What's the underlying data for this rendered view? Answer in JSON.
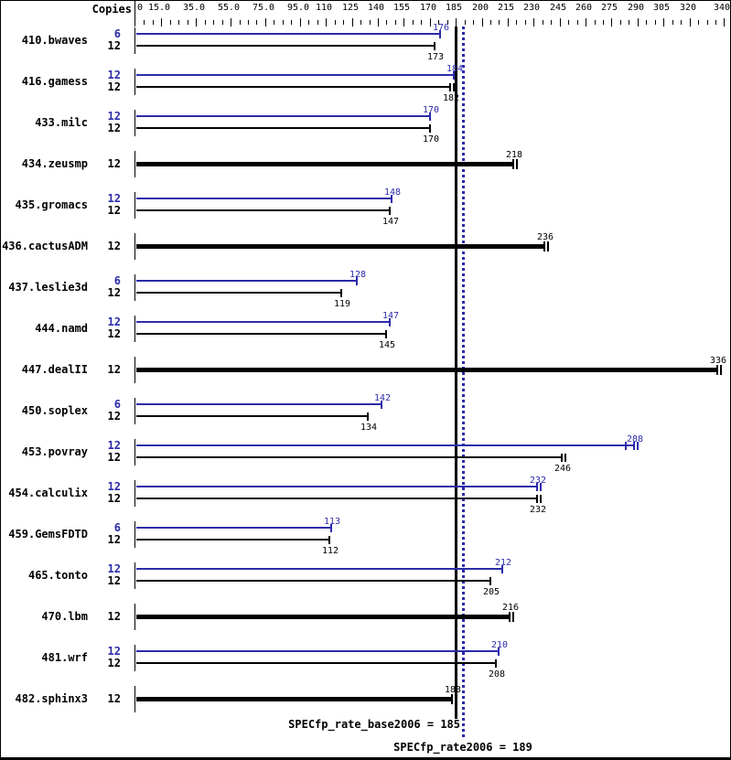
{
  "chart_data": {
    "type": "bar",
    "orientation": "horizontal",
    "copies_header": "Copies",
    "colors": {
      "peak": "#2b2baa",
      "base": "#000000"
    },
    "axis": {
      "min": 0,
      "max": 340,
      "minor_tick_step": 5,
      "ticks": [
        {
          "label": "0",
          "value": 0
        },
        {
          "label": "15.0",
          "value": 15
        },
        {
          "label": "35.0",
          "value": 35
        },
        {
          "label": "55.0",
          "value": 55
        },
        {
          "label": "75.0",
          "value": 75
        },
        {
          "label": "95.0",
          "value": 95
        },
        {
          "label": "110",
          "value": 110
        },
        {
          "label": "125",
          "value": 125
        },
        {
          "label": "140",
          "value": 140
        },
        {
          "label": "155",
          "value": 155
        },
        {
          "label": "170",
          "value": 170
        },
        {
          "label": "185",
          "value": 185
        },
        {
          "label": "200",
          "value": 200
        },
        {
          "label": "215",
          "value": 215
        },
        {
          "label": "230",
          "value": 230
        },
        {
          "label": "245",
          "value": 245
        },
        {
          "label": "260",
          "value": 260
        },
        {
          "label": "275",
          "value": 275
        },
        {
          "label": "290",
          "value": 290
        },
        {
          "label": "305",
          "value": 305
        },
        {
          "label": "320",
          "value": 320
        },
        {
          "label": "340",
          "value": 340
        }
      ]
    },
    "benchmarks": [
      {
        "name": "410.bwaves",
        "bars": [
          {
            "series": "peak",
            "copies": "6",
            "value": 176,
            "caps": 1
          },
          {
            "series": "base",
            "copies": "12",
            "value": 173,
            "caps": 1
          }
        ]
      },
      {
        "name": "416.gamess",
        "bars": [
          {
            "series": "peak",
            "copies": "12",
            "value": 184,
            "caps": 1
          },
          {
            "series": "base",
            "copies": "12",
            "value": 182,
            "caps": 2
          }
        ]
      },
      {
        "name": "433.milc",
        "bars": [
          {
            "series": "peak",
            "copies": "12",
            "value": 170,
            "caps": 1
          },
          {
            "series": "base",
            "copies": "12",
            "value": 170,
            "caps": 1
          }
        ]
      },
      {
        "name": "434.zeusmp",
        "bars": [
          {
            "series": "base",
            "copies": "12",
            "value": 218,
            "caps": 2,
            "single": true
          }
        ]
      },
      {
        "name": "435.gromacs",
        "bars": [
          {
            "series": "peak",
            "copies": "12",
            "value": 148,
            "caps": 1
          },
          {
            "series": "base",
            "copies": "12",
            "value": 147,
            "caps": 1
          }
        ]
      },
      {
        "name": "436.cactusADM",
        "bars": [
          {
            "series": "base",
            "copies": "12",
            "value": 236,
            "caps": 2,
            "single": true
          }
        ]
      },
      {
        "name": "437.leslie3d",
        "bars": [
          {
            "series": "peak",
            "copies": "6",
            "value": 128,
            "caps": 1
          },
          {
            "series": "base",
            "copies": "12",
            "value": 119,
            "caps": 1
          }
        ]
      },
      {
        "name": "444.namd",
        "bars": [
          {
            "series": "peak",
            "copies": "12",
            "value": 147,
            "caps": 1
          },
          {
            "series": "base",
            "copies": "12",
            "value": 145,
            "caps": 1
          }
        ]
      },
      {
        "name": "447.dealII",
        "bars": [
          {
            "series": "base",
            "copies": "12",
            "value": 336,
            "caps": 2,
            "single": true
          }
        ]
      },
      {
        "name": "450.soplex",
        "bars": [
          {
            "series": "peak",
            "copies": "6",
            "value": 142,
            "caps": 1
          },
          {
            "series": "base",
            "copies": "12",
            "value": 134,
            "caps": 1
          }
        ]
      },
      {
        "name": "453.povray",
        "bars": [
          {
            "series": "peak",
            "copies": "12",
            "value": 288,
            "caps": 2,
            "extra_marks": [
              283
            ]
          },
          {
            "series": "base",
            "copies": "12",
            "value": 246,
            "caps": 2
          }
        ]
      },
      {
        "name": "454.calculix",
        "bars": [
          {
            "series": "peak",
            "copies": "12",
            "value": 232,
            "caps": 2
          },
          {
            "series": "base",
            "copies": "12",
            "value": 232,
            "caps": 2
          }
        ]
      },
      {
        "name": "459.GemsFDTD",
        "bars": [
          {
            "series": "peak",
            "copies": "6",
            "value": 113,
            "caps": 1
          },
          {
            "series": "base",
            "copies": "12",
            "value": 112,
            "caps": 1
          }
        ]
      },
      {
        "name": "465.tonto",
        "bars": [
          {
            "series": "peak",
            "copies": "12",
            "value": 212,
            "caps": 1
          },
          {
            "series": "base",
            "copies": "12",
            "value": 205,
            "caps": 1
          }
        ]
      },
      {
        "name": "470.lbm",
        "bars": [
          {
            "series": "base",
            "copies": "12",
            "value": 216,
            "caps": 2,
            "single": true
          }
        ]
      },
      {
        "name": "481.wrf",
        "bars": [
          {
            "series": "peak",
            "copies": "12",
            "value": 210,
            "caps": 1
          },
          {
            "series": "base",
            "copies": "12",
            "value": 208,
            "caps": 1
          }
        ]
      },
      {
        "name": "482.sphinx3",
        "bars": [
          {
            "series": "base",
            "copies": "12",
            "value": 183,
            "caps": 1,
            "single": true
          }
        ]
      }
    ],
    "reference_lines": [
      {
        "id": "base",
        "value": 185,
        "label": "SPECfp_rate_base2006 = 185",
        "style": "solid",
        "color": "#000000"
      },
      {
        "id": "peak",
        "value": 189,
        "label": "SPECfp_rate2006 = 189",
        "style": "dotted",
        "color": "#2b2baa"
      }
    ]
  }
}
